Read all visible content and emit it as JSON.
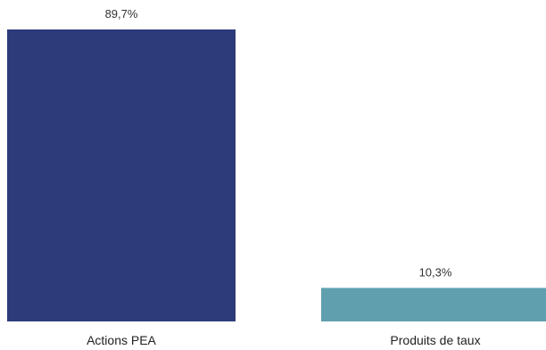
{
  "chart_data": {
    "type": "bar",
    "categories": [
      "Actions PEA",
      "Produits de taux"
    ],
    "values": [
      89.7,
      10.3
    ],
    "value_labels": [
      "89,7%",
      "10,3%"
    ],
    "unit": "%",
    "ylim": [
      0,
      89.7
    ],
    "grid": false,
    "legend": "none",
    "title": "",
    "xlabel": "",
    "ylabel": "",
    "colors": [
      "#2e3b7b",
      "#5f9fae"
    ]
  }
}
